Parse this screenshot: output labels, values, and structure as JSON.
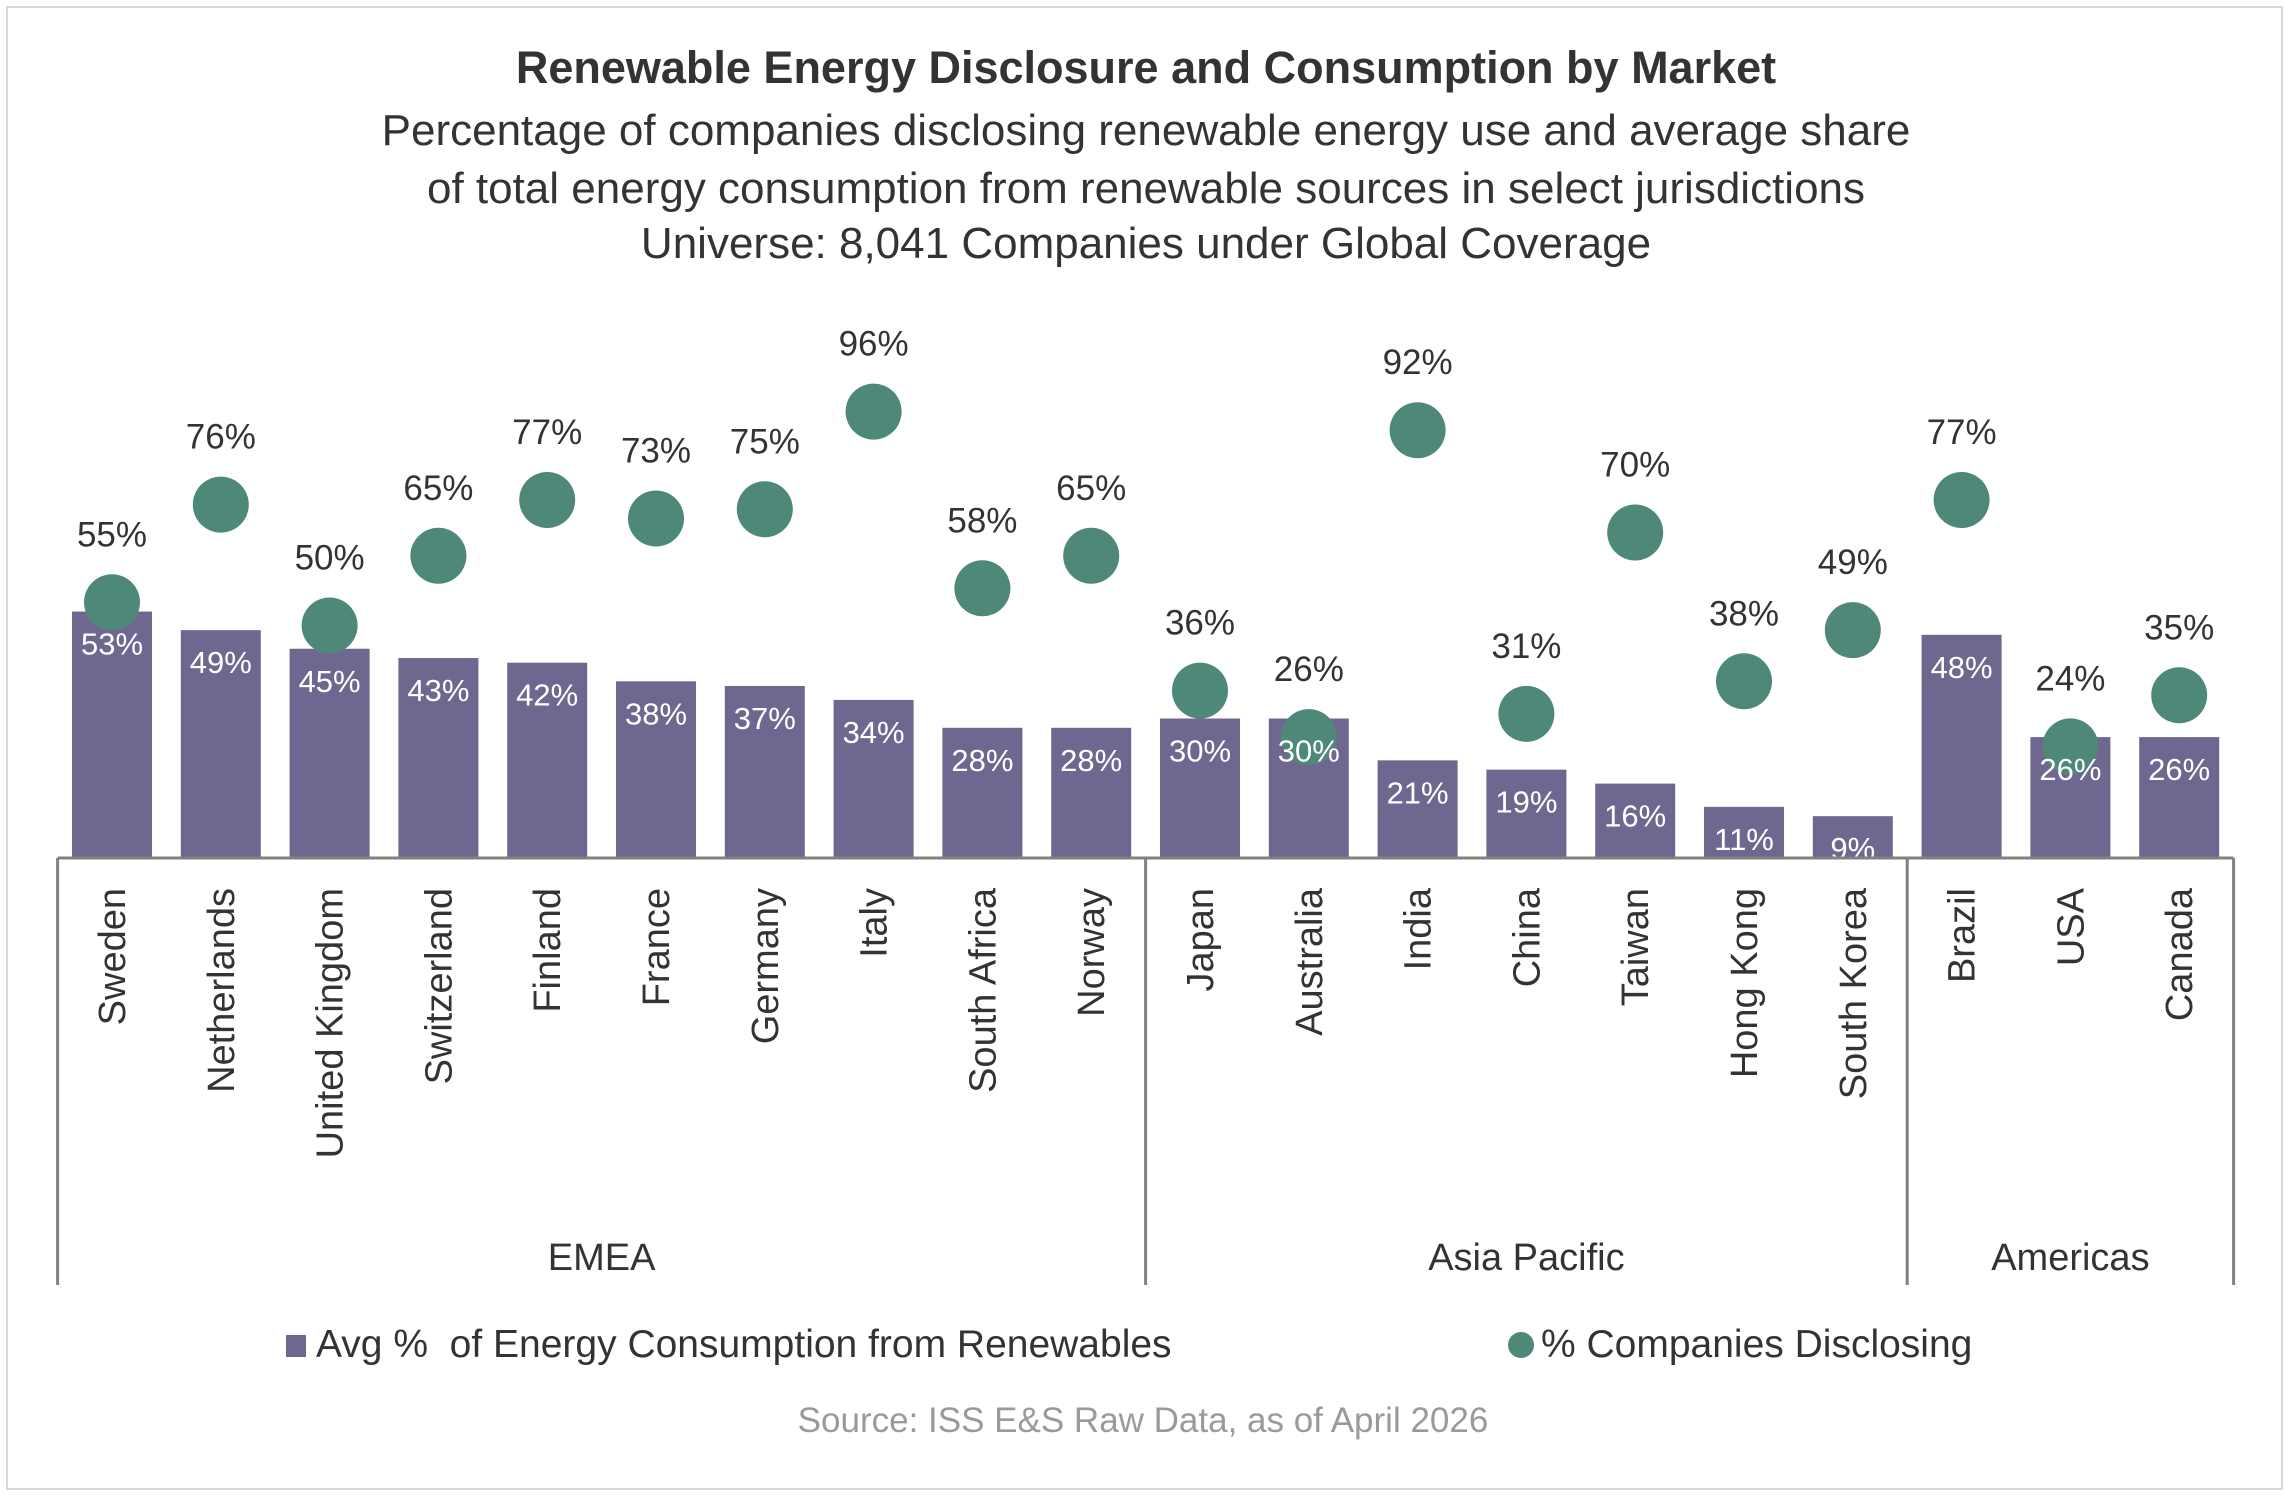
{
  "colors": {
    "bar": "#6e6890",
    "dot": "#4e8878",
    "text": "#333333",
    "axis": "#808080",
    "source": "#9a9a9a",
    "bar_label": "#ffffff"
  },
  "chart_data": {
    "type": "bar",
    "title": "Renewable Energy Disclosure and Consumption by Market",
    "subtitle_lines": [
      "Percentage of companies disclosing renewable energy use and average share",
      "of total energy consumption from renewable sources in select jurisdictions",
      "Universe: 8,041 Companies under Global Coverage"
    ],
    "categories": [
      "Sweden",
      "Netherlands",
      "United Kingdom",
      "Switzerland",
      "Finland",
      "France",
      "Germany",
      "Italy",
      "South Africa",
      "Norway",
      "Japan",
      "Australia",
      "India",
      "China",
      "Taiwan",
      "Hong Kong",
      "South Korea",
      "Brazil",
      "USA",
      "Canada"
    ],
    "groups": [
      {
        "name": "EMEA",
        "count": 10
      },
      {
        "name": "Asia Pacific",
        "count": 7
      },
      {
        "name": "Americas",
        "count": 3
      }
    ],
    "series": [
      {
        "name": "Avg %  of Energy Consumption from Renewables",
        "type": "bar",
        "values": [
          53,
          49,
          45,
          43,
          42,
          38,
          37,
          34,
          28,
          28,
          30,
          30,
          21,
          19,
          16,
          11,
          9,
          48,
          26,
          26
        ],
        "labels": [
          "53%",
          "49%",
          "45%",
          "43%",
          "42%",
          "38%",
          "37%",
          "34%",
          "28%",
          "28%",
          "30%",
          "30%",
          "21%",
          "19%",
          "16%",
          "11%",
          "9%",
          "48%",
          "26%",
          "26%"
        ]
      },
      {
        "name": "% Companies Disclosing",
        "type": "dot",
        "values": [
          55,
          76,
          50,
          65,
          77,
          73,
          75,
          96,
          58,
          65,
          36,
          26,
          92,
          31,
          70,
          38,
          49,
          77,
          24,
          35
        ],
        "labels": [
          "55%",
          "76%",
          "50%",
          "65%",
          "77%",
          "73%",
          "75%",
          "96%",
          "58%",
          "65%",
          "36%",
          "26%",
          "92%",
          "31%",
          "70%",
          "38%",
          "49%",
          "77%",
          "24%",
          "35%"
        ]
      }
    ],
    "ylim": [
      0,
      100
    ],
    "xlabel": "",
    "ylabel": "",
    "legend_position": "bottom",
    "source": "Source: ISS E&S Raw Data, as of April 2026"
  }
}
